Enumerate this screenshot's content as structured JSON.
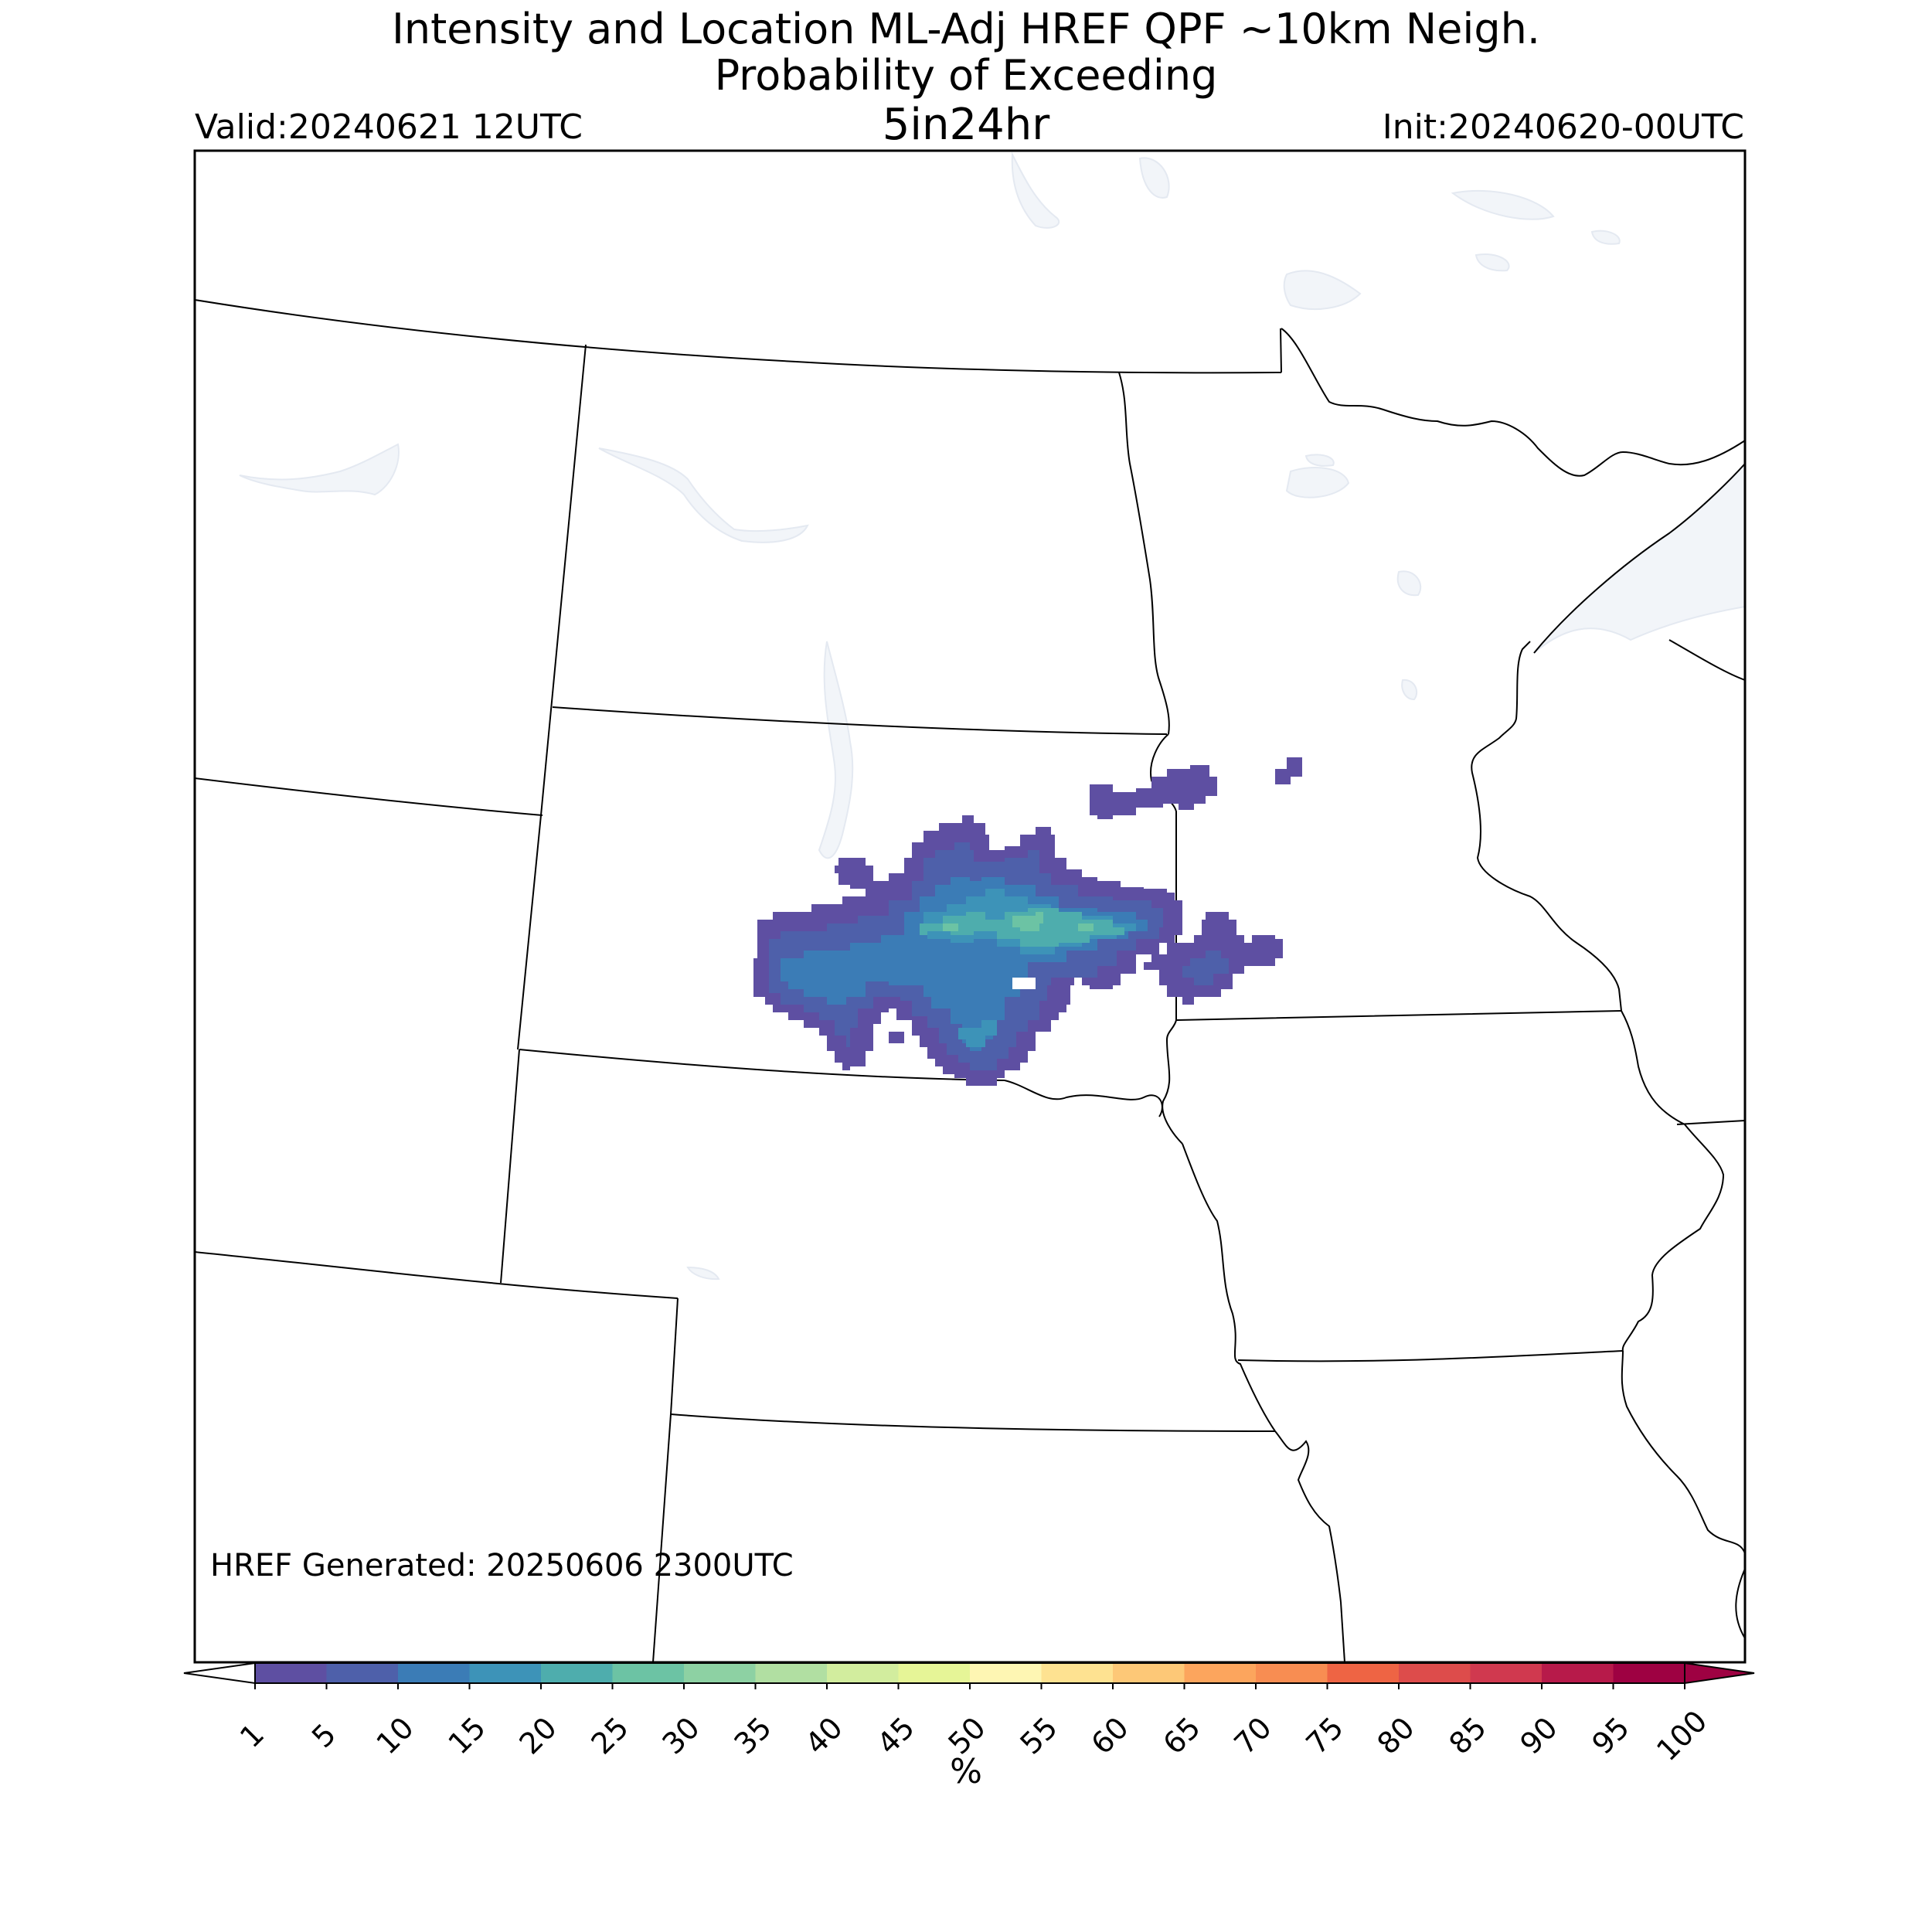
{
  "header": {
    "title_line1": "Intensity and Location ML-Adj HREF QPF ~10km Neigh.",
    "title_line2": "Probability of Exceeding",
    "threshold": "5in24hr",
    "valid": "Valid:20240621 12UTC",
    "init": "Init:20240620-00UTC"
  },
  "footer": {
    "generated": "HREF Generated: 20250606 2300UTC"
  },
  "colorbar": {
    "unit": "%",
    "ticks": [
      "1",
      "5",
      "10",
      "15",
      "20",
      "25",
      "30",
      "35",
      "40",
      "45",
      "50",
      "55",
      "60",
      "65",
      "70",
      "75",
      "80",
      "85",
      "90",
      "95",
      "100"
    ],
    "colors": [
      "#5e4fa2",
      "#4e60aa",
      "#3b7cb6",
      "#3d93b8",
      "#4eadad",
      "#6cc3a4",
      "#8dd1a3",
      "#b1dfa2",
      "#d2ed9e",
      "#e6f597",
      "#fef6b3",
      "#fee291",
      "#fdc877",
      "#fca55d",
      "#f88d52",
      "#ee6444",
      "#dd4c4b",
      "#d0394f",
      "#b71a4a",
      "#9e0142"
    ],
    "under_color": "#ffffff",
    "over_color": "#9e0142"
  },
  "map": {
    "region": "Northern Plains / Upper Midwest",
    "water_color": "#f2f5f9",
    "border_color": "#000000",
    "precip_max_percent": 30
  }
}
